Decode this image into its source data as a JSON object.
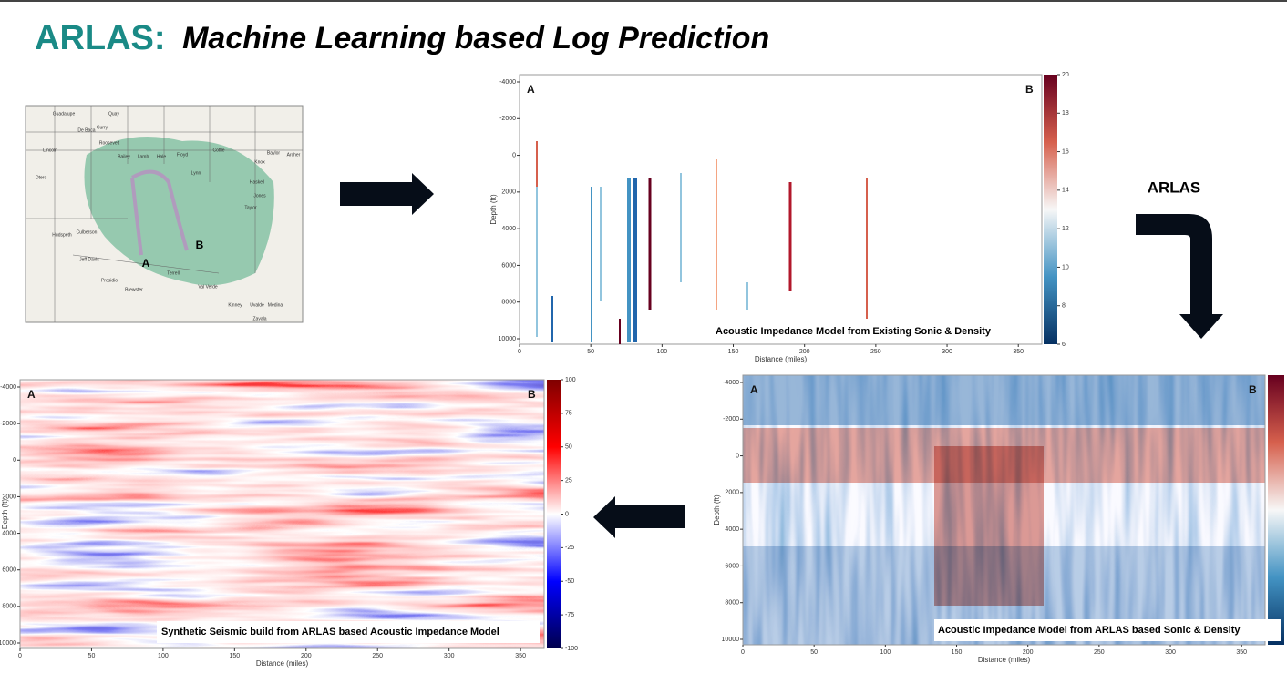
{
  "title": {
    "prefix": "ARLAS:",
    "main": "Machine Learning based Log Prediction"
  },
  "arrow_label": "ARLAS",
  "map": {
    "labels": [
      "A",
      "B"
    ],
    "counties": [
      "Guadalupe",
      "Quay",
      "Curry",
      "De Baca",
      "Roosevelt",
      "Bailey",
      "Lamb",
      "Hale",
      "Floyd",
      "Cottle",
      "Lynn",
      "Knox",
      "Baylor",
      "Archer",
      "Haskell",
      "Jones",
      "Taylor",
      "Culberson",
      "Hudspeth",
      "Jeff Davis",
      "Presidio",
      "Brewster",
      "Terrell",
      "Val Verde",
      "Kinney",
      "Uvalde",
      "Medina",
      "Zavala",
      "Lincoln",
      "Otero"
    ]
  },
  "panels": [
    {
      "corner_labels": [
        "A",
        "B"
      ],
      "caption": "Acoustic Impedance Model from Existing Sonic & Density",
      "y_axis_label": "Depth (ft)",
      "x_axis_label": "Distance (miles)",
      "yticks": [
        -4000,
        -2000,
        0,
        2000,
        4000,
        6000,
        8000,
        10000
      ],
      "xticks": [
        0,
        50,
        100,
        150,
        200,
        250,
        300,
        350
      ],
      "colorbar_ticks": [
        20,
        18,
        16,
        14,
        12,
        10,
        8,
        6
      ]
    },
    {
      "corner_labels": [
        "A",
        "B"
      ],
      "caption": "Acoustic Impedance Model from ARLAS based Sonic & Density",
      "y_axis_label": "Depth (ft)",
      "x_axis_label": "Distance (miles)",
      "yticks": [
        -4000,
        -2000,
        0,
        2000,
        4000,
        6000,
        8000,
        10000
      ],
      "xticks": [
        0,
        50,
        100,
        150,
        200,
        250,
        300,
        350
      ]
    },
    {
      "corner_labels": [
        "A",
        "B"
      ],
      "caption": "Synthetic Seismic build from ARLAS based Acoustic Impedance Model",
      "y_axis_label": "Depth (ft)",
      "x_axis_label": "Distance (miles)",
      "yticks": [
        -4000,
        -2000,
        0,
        2000,
        4000,
        6000,
        8000,
        10000
      ],
      "xticks": [
        0,
        50,
        100,
        150,
        200,
        250,
        300,
        350
      ],
      "colorbar_ticks": [
        100,
        75,
        50,
        25,
        0,
        -25,
        -50,
        -75,
        -100
      ]
    }
  ]
}
